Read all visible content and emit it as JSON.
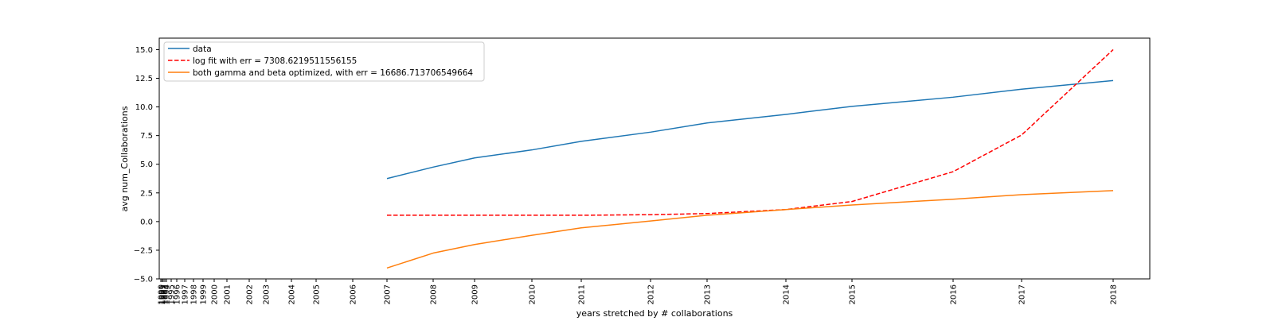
{
  "chart_data": {
    "type": "line",
    "title": "",
    "xlabel": "years stretched by # collaborations",
    "ylabel": "avg num_Collaborations",
    "ylim": [
      -5,
      16
    ],
    "y_ticks": [
      "−5.0",
      "−2.5",
      "0.0",
      "2.5",
      "5.0",
      "7.5",
      "10.0",
      "12.5",
      "15.0"
    ],
    "y_tick_values": [
      -5,
      -2.5,
      0,
      2.5,
      5,
      7.5,
      10,
      12.5,
      15
    ],
    "x_tick_labels": [
      "1990",
      "1991",
      "1992",
      "1993",
      "1994",
      "1995",
      "1996",
      "1997",
      "1998",
      "1999",
      "2000",
      "2001",
      "2002",
      "2003",
      "2004",
      "2005",
      "2006",
      "2007",
      "2008",
      "2009",
      "2010",
      "2011",
      "2012",
      "2013",
      "2014",
      "2015",
      "2016",
      "2017",
      "2018"
    ],
    "grid": false,
    "legend": "top-left",
    "x": [
      "2007",
      "2008",
      "2009",
      "2010",
      "2011",
      "2012",
      "2013",
      "2014",
      "2015",
      "2016",
      "2017",
      "2018"
    ],
    "series": [
      {
        "name": "data",
        "color": "#1f77b4",
        "style": "solid",
        "values": [
          3.75,
          4.75,
          5.55,
          6.25,
          7.0,
          7.8,
          8.6,
          9.35,
          10.05,
          10.85,
          11.55,
          12.3
        ]
      },
      {
        "name": "log fit with err = 7308.6219511556155",
        "color": "#ff0000",
        "style": "dashed",
        "values": [
          0.55,
          0.55,
          0.55,
          0.55,
          0.55,
          0.6,
          0.7,
          1.05,
          1.75,
          4.35,
          7.55,
          15.0
        ]
      },
      {
        "name": "both gamma and beta optimized, with err = 16686.713706549664",
        "color": "#ff7f0e",
        "style": "solid",
        "values": [
          -4.05,
          -2.75,
          -2.0,
          -1.2,
          -0.55,
          0.05,
          0.55,
          1.05,
          1.45,
          1.95,
          2.35,
          2.7
        ]
      }
    ]
  }
}
